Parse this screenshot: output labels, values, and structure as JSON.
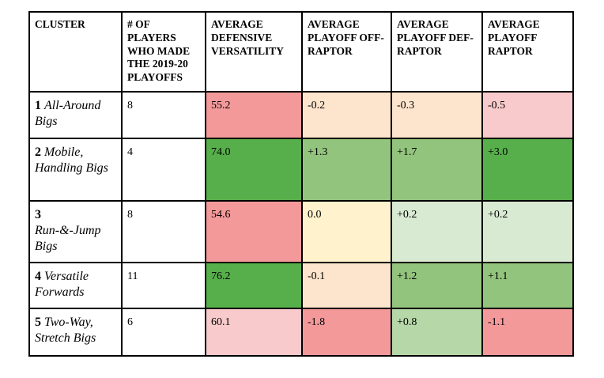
{
  "colors": {
    "red": "#f4999a",
    "pink": "#f9cacb",
    "peach": "#fde5cd",
    "yellow": "#fff2cc",
    "light_green": "#d9ead3",
    "mid_green": "#b6d7a8",
    "green": "#93c47d",
    "dark_green": "#57af4b",
    "white": "#ffffff"
  },
  "headers": [
    "CLUSTER",
    "# OF PLAYERS WHO MADE THE 2019-20 PLAYOFFS",
    "AVERAGE DEFENSIVE VERSATILITY",
    "AVERAGE PLAYOFF OFF-RAPTOR",
    "AVERAGE PLAYOFF DEF-RAPTOR",
    "AVERAGE PLAYOFF RAPTOR"
  ],
  "rows": [
    {
      "num": "1",
      "name": "All-Around Bigs",
      "players": "8",
      "versatility": "55.2",
      "off_raptor": "-0.2",
      "def_raptor": "-0.3",
      "raptor": "-0.5",
      "fills": [
        "red",
        "peach",
        "peach",
        "pink"
      ]
    },
    {
      "num": "2",
      "name": "Mobile, Handling Bigs",
      "players": "4",
      "versatility": "74.0",
      "off_raptor": "+1.3",
      "def_raptor": "+1.7",
      "raptor": "+3.0",
      "fills": [
        "dark_green",
        "green",
        "green",
        "dark_green"
      ]
    },
    {
      "num": "3",
      "name": "Run-&-Jump Bigs",
      "players": "8",
      "versatility": "54.6",
      "off_raptor": "0.0",
      "def_raptor": "+0.2",
      "raptor": "+0.2",
      "fills": [
        "red",
        "yellow",
        "light_green",
        "light_green"
      ]
    },
    {
      "num": "4",
      "name": "Versatile Forwards",
      "players": "11",
      "versatility": "76.2",
      "off_raptor": "-0.1",
      "def_raptor": "+1.2",
      "raptor": "+1.1",
      "fills": [
        "dark_green",
        "peach",
        "green",
        "green"
      ]
    },
    {
      "num": "5",
      "name": "Two-Way, Stretch Bigs",
      "players": "6",
      "versatility": "60.1",
      "off_raptor": "-1.8",
      "def_raptor": "+0.8",
      "raptor": "-1.1",
      "fills": [
        "pink",
        "red",
        "mid_green",
        "red"
      ]
    }
  ]
}
